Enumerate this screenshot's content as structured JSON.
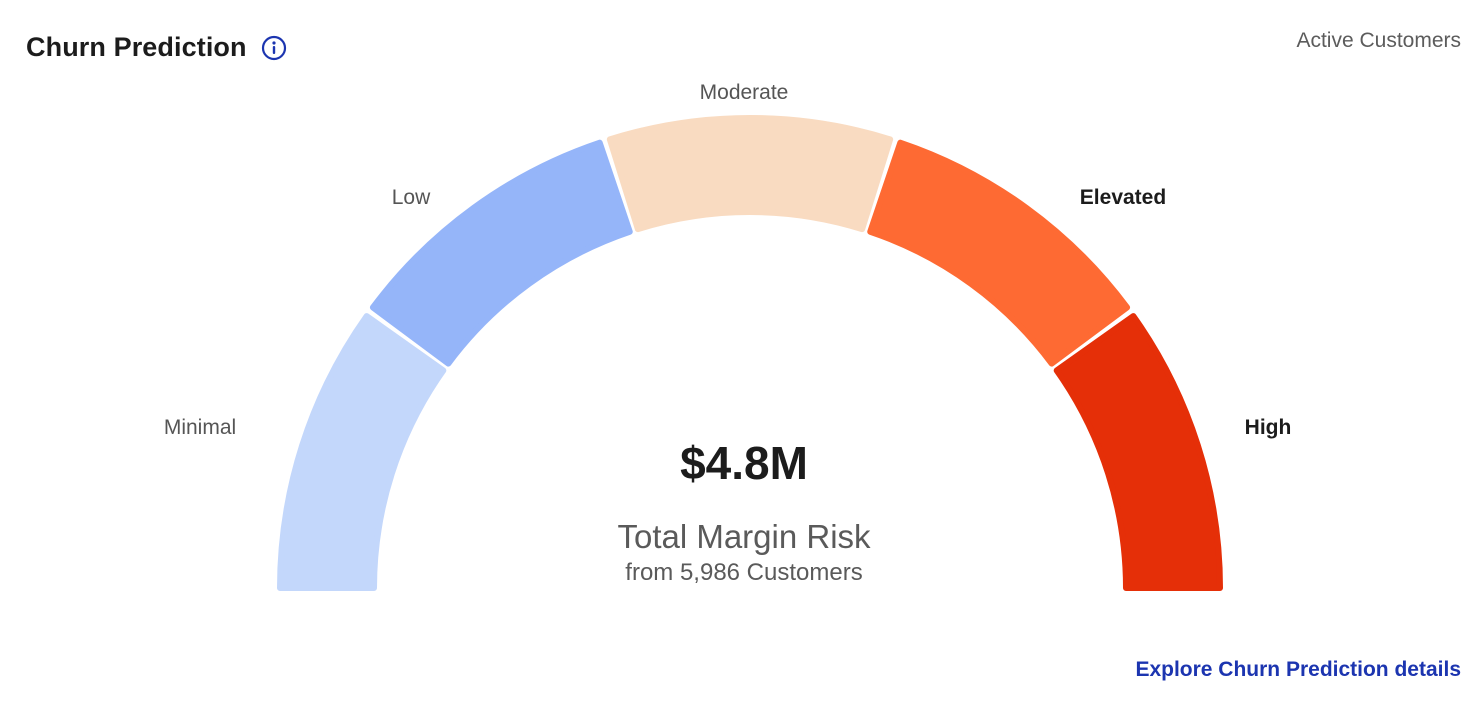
{
  "header": {
    "title": "Churn Prediction",
    "info_icon": "info-circle-icon",
    "filter_label": "Active Customers"
  },
  "gauge": {
    "segments": [
      {
        "key": "minimal",
        "label": "Minimal",
        "color": "#c3d7fb",
        "highlighted": false
      },
      {
        "key": "low",
        "label": "Low",
        "color": "#95b5f9",
        "highlighted": false
      },
      {
        "key": "moderate",
        "label": "Moderate",
        "color": "#f9dbc1",
        "highlighted": false
      },
      {
        "key": "elevated",
        "label": "Elevated",
        "color": "#fe6a33",
        "highlighted": true
      },
      {
        "key": "high",
        "label": "High",
        "color": "#e52f08",
        "highlighted": true
      }
    ]
  },
  "summary": {
    "value": "$4.8M",
    "label": "Total Margin Risk",
    "sub": "from 5,986 Customers"
  },
  "footer": {
    "link_label": "Explore Churn Prediction details"
  },
  "colors": {
    "link": "#1c35b0",
    "icon": "#1c35b0"
  }
}
